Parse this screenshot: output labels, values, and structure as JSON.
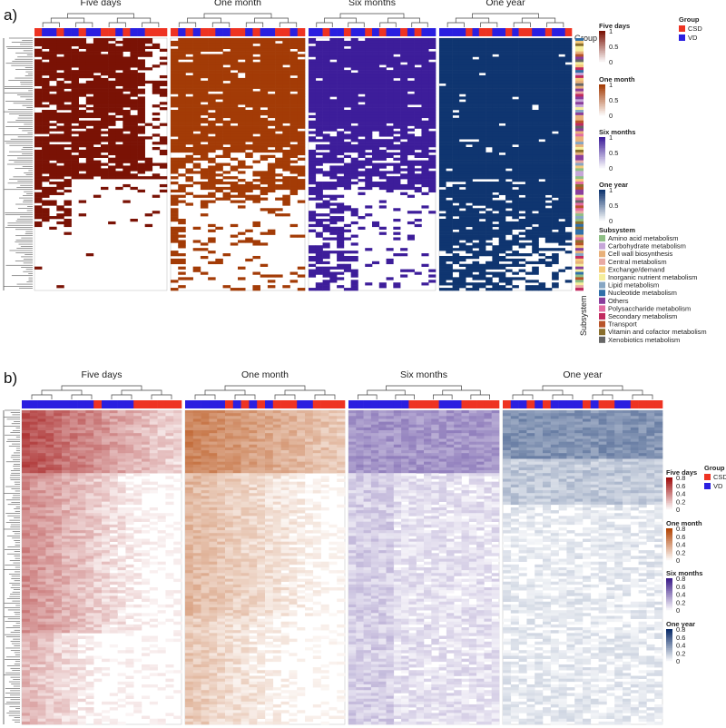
{
  "panels": {
    "a": {
      "label": "a)"
    },
    "b": {
      "label": "b)"
    }
  },
  "row_labels": {
    "group": "Group",
    "subsystem": "Subsystem"
  },
  "legends": {
    "panel_a": {
      "scales": [
        {
          "title": "Five days",
          "ticks": [
            "1",
            "0.5",
            "0"
          ],
          "color_high": "#7a1205",
          "color_low": "#ffffff"
        },
        {
          "title": "One month",
          "ticks": [
            "1",
            "0.5",
            "0"
          ],
          "color_high": "#a33b06",
          "color_low": "#ffffff"
        },
        {
          "title": "Six months",
          "ticks": [
            "1",
            "0.5",
            "0"
          ],
          "color_high": "#3d1d9a",
          "color_low": "#ffffff"
        },
        {
          "title": "One year",
          "ticks": [
            "1",
            "0.5",
            "0"
          ],
          "color_high": "#0f3570",
          "color_low": "#ffffff"
        }
      ],
      "group": {
        "title": "Group",
        "items": [
          {
            "label": "CSD",
            "color": "#ee3322"
          },
          {
            "label": "VD",
            "color": "#2a1fe0"
          }
        ]
      },
      "subsystem": {
        "title": "Subsystem",
        "items": [
          {
            "label": "Amino acid metabolism",
            "color": "#8fbf86"
          },
          {
            "label": "Carbohydrate metabolism",
            "color": "#c6a6d8"
          },
          {
            "label": "Cell wall biosynthesis",
            "color": "#e8b07a"
          },
          {
            "label": "Central metabolism",
            "color": "#e8a9a3"
          },
          {
            "label": "Exchange/demand",
            "color": "#f4c97b"
          },
          {
            "label": "Inorganic nutrient metabolism",
            "color": "#f5ee9c"
          },
          {
            "label": "Lipid metabolism",
            "color": "#86a6c3"
          },
          {
            "label": "Nucleotide metabolism",
            "color": "#2f6fa8"
          },
          {
            "label": "Others",
            "color": "#8a3e9c"
          },
          {
            "label": "Polysaccharide metabolism",
            "color": "#e36ca2"
          },
          {
            "label": "Secondary metabolism",
            "color": "#c12a5f"
          },
          {
            "label": "Transport",
            "color": "#b8542a"
          },
          {
            "label": "Vitamin and cofactor metabolism",
            "color": "#8a6f2d"
          },
          {
            "label": "Xenobiotics metabolism",
            "color": "#666666"
          }
        ]
      }
    },
    "panel_b": {
      "scales": [
        {
          "title": "Five days",
          "ticks": [
            "0.8",
            "0.6",
            "0.4",
            "0.2",
            "0"
          ],
          "color_high": "#9e0c0c",
          "color_low": "#ffffff"
        },
        {
          "title": "One month",
          "ticks": [
            "0.8",
            "0.6",
            "0.4",
            "0.2",
            "0"
          ],
          "color_high": "#b34506",
          "color_low": "#ffffff"
        },
        {
          "title": "Six months",
          "ticks": [
            "0.8",
            "0.6",
            "0.4",
            "0.2",
            "0"
          ],
          "color_high": "#3d1d8a",
          "color_low": "#ffffff"
        },
        {
          "title": "One year",
          "ticks": [
            "0.8",
            "0.6",
            "0.4",
            "0.2",
            "0"
          ],
          "color_high": "#0a2c6a",
          "color_low": "#ffffff"
        }
      ],
      "group": {
        "title": "Group",
        "items": [
          {
            "label": "CSD",
            "color": "#ee3322"
          },
          {
            "label": "VD",
            "color": "#2a1fe0"
          }
        ]
      }
    }
  },
  "chart_data": [
    {
      "type": "heatmap",
      "panel": "a",
      "value_range": [
        0,
        1
      ],
      "series": [
        {
          "name": "Five days",
          "group_annotation": [
            "CSD",
            "VD",
            "VD",
            "CSD",
            "VD",
            "VD",
            "CSD",
            "VD",
            "VD",
            "CSD",
            "CSD",
            "VD",
            "CSD",
            "VD",
            "VD",
            "CSD",
            "CSD",
            "CSD"
          ],
          "color": "#7a1205"
        },
        {
          "name": "One month",
          "group_annotation": [
            "CSD",
            "VD",
            "CSD",
            "VD",
            "CSD",
            "CSD",
            "VD",
            "VD",
            "CSD",
            "CSD",
            "VD",
            "CSD",
            "VD",
            "VD",
            "CSD",
            "CSD",
            "VD",
            "CSD"
          ],
          "color": "#a33b06"
        },
        {
          "name": "Six months",
          "group_annotation": [
            "VD",
            "VD",
            "CSD",
            "VD",
            "VD",
            "CSD",
            "VD",
            "VD",
            "CSD",
            "VD",
            "CSD",
            "VD",
            "VD",
            "CSD",
            "VD",
            "CSD",
            "VD",
            "VD"
          ],
          "color": "#3d1d9a"
        },
        {
          "name": "One year",
          "group_annotation": [
            "VD",
            "VD",
            "VD",
            "VD",
            "CSD",
            "VD",
            "CSD",
            "CSD",
            "VD",
            "VD",
            "CSD",
            "VD",
            "CSD",
            "CSD",
            "VD",
            "VD",
            "CSD",
            "VD",
            "VD",
            "CSD"
          ],
          "color": "#0f3570"
        }
      ]
    },
    {
      "type": "heatmap",
      "panel": "b",
      "value_range": [
        0,
        0.8
      ],
      "series": [
        {
          "name": "Five days",
          "group_annotation": [
            "VD",
            "VD",
            "VD",
            "VD",
            "VD",
            "VD",
            "VD",
            "VD",
            "VD",
            "CSD",
            "VD",
            "VD",
            "VD",
            "VD",
            "CSD",
            "CSD",
            "CSD",
            "CSD",
            "CSD",
            "CSD"
          ],
          "color": "#9e0c0c"
        },
        {
          "name": "One month",
          "group_annotation": [
            "VD",
            "VD",
            "VD",
            "VD",
            "VD",
            "CSD",
            "VD",
            "CSD",
            "VD",
            "CSD",
            "VD",
            "CSD",
            "CSD",
            "CSD",
            "VD",
            "VD",
            "CSD",
            "CSD",
            "CSD",
            "CSD"
          ],
          "color": "#b34506"
        },
        {
          "name": "Six months",
          "group_annotation": [
            "VD",
            "VD",
            "VD",
            "VD",
            "VD",
            "VD",
            "VD",
            "VD",
            "CSD",
            "CSD",
            "CSD",
            "CSD",
            "VD",
            "VD",
            "VD",
            "CSD",
            "CSD",
            "CSD",
            "CSD",
            "CSD"
          ],
          "color": "#3d1d8a"
        },
        {
          "name": "One year",
          "group_annotation": [
            "CSD",
            "VD",
            "VD",
            "CSD",
            "VD",
            "CSD",
            "VD",
            "VD",
            "VD",
            "VD",
            "CSD",
            "VD",
            "CSD",
            "CSD",
            "VD",
            "VD",
            "CSD",
            "CSD",
            "CSD",
            "CSD"
          ],
          "color": "#0a2c6a"
        }
      ]
    }
  ]
}
